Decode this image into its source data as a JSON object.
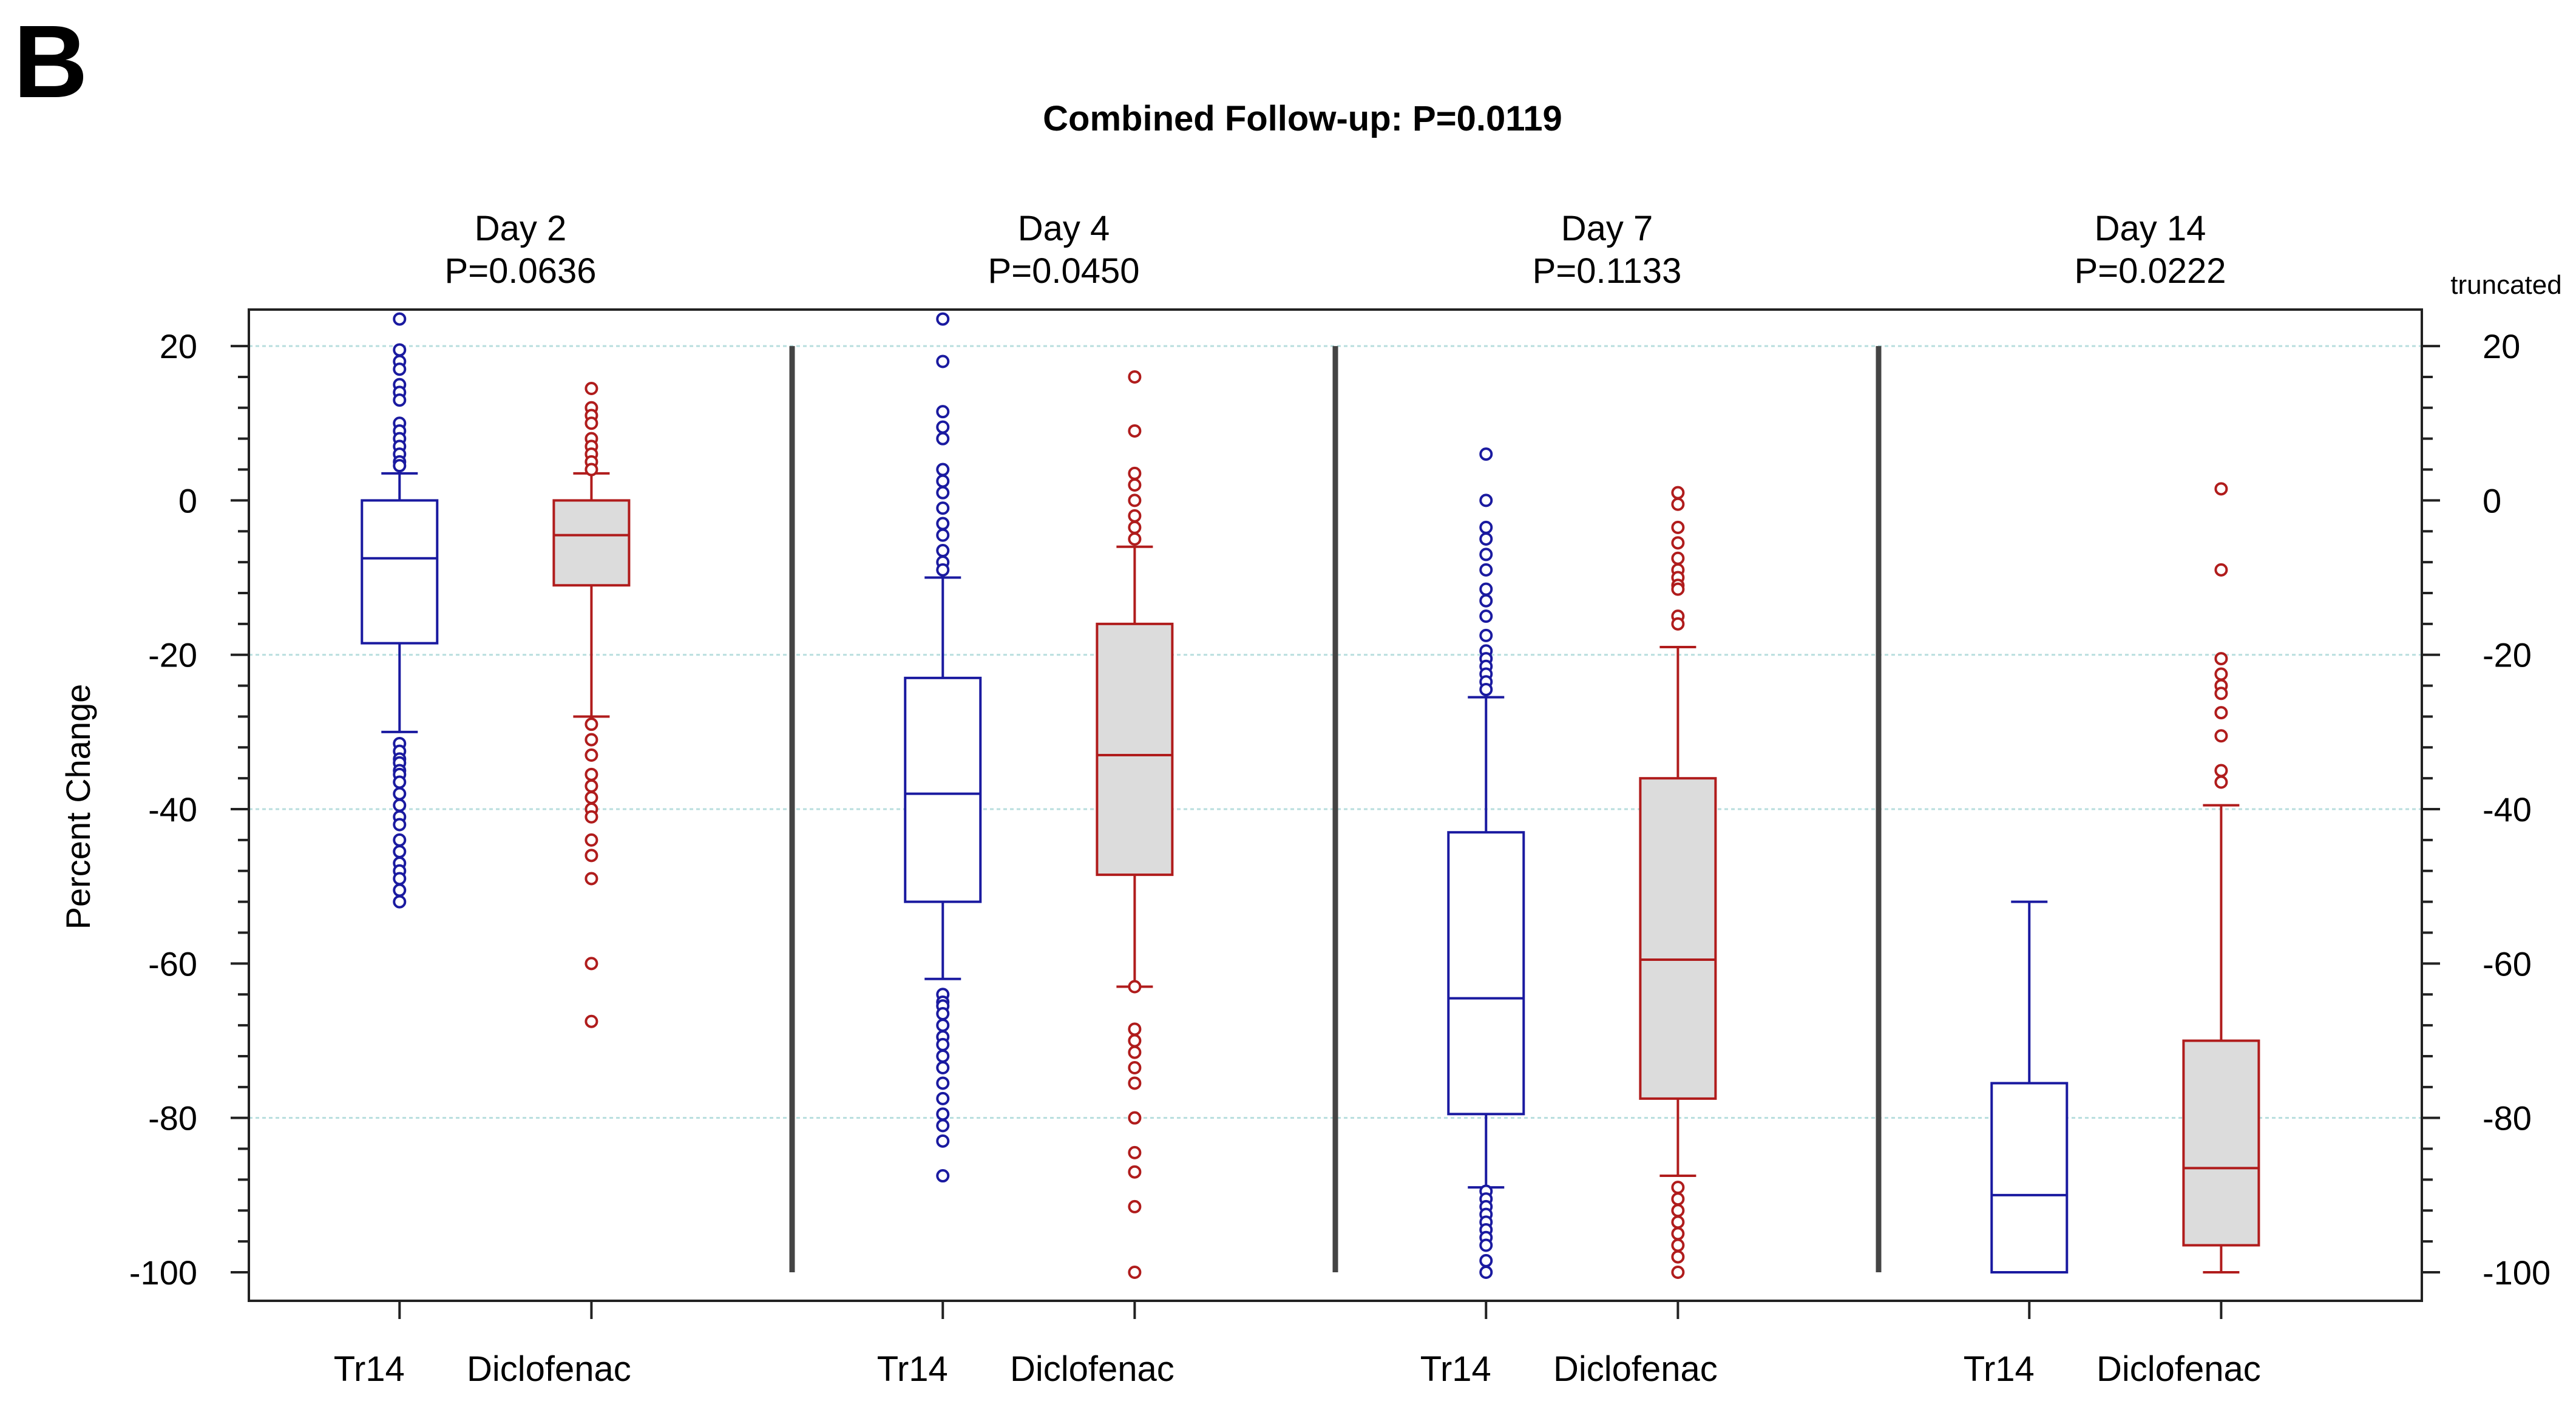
{
  "chart_data": {
    "type": "box",
    "panel_label": "B",
    "title": "Combined Follow-up: P=0.0119",
    "ylabel": "Percent Change",
    "right_note": "truncated",
    "ylim": [
      -100,
      24
    ],
    "yticks_major": [
      -100,
      -80,
      -60,
      -40,
      -20,
      0,
      20
    ],
    "ytick_labels": [
      "-100",
      "-80",
      "-60",
      "-40",
      "-20",
      "0",
      "20"
    ],
    "yticks_minor_step": 4,
    "gridlines": [
      -80,
      -40,
      -20,
      20
    ],
    "colors": {
      "Tr14": "#1a1aa0",
      "Diclofenac": "#b01c1c",
      "Diclofenac_fill": "#dcdcdc",
      "grid": "#b8dede"
    },
    "panels": [
      {
        "day": "Day 2",
        "p": "P=0.0636",
        "groups": [
          {
            "name": "Tr14",
            "whisker_low": -30,
            "q1": -18.5,
            "median": -7.5,
            "q3": 0,
            "whisker_high": 3.5,
            "outliers": [
              23.5,
              19.5,
              18,
              17,
              15,
              14,
              13,
              10,
              9,
              8,
              7,
              6,
              5,
              4.5,
              -31.5,
              -32.5,
              -33.5,
              -34,
              -35,
              -35.5,
              -36.5,
              -38,
              -39.5,
              -41,
              -42,
              -44,
              -45.5,
              -47,
              -48,
              -49,
              -50.5,
              -52
            ]
          },
          {
            "name": "Diclofenac",
            "whisker_low": -28,
            "q1": -11,
            "median": -4.5,
            "q3": 0,
            "whisker_high": 3.5,
            "outliers": [
              14.5,
              12,
              11,
              10,
              8,
              7,
              6,
              5,
              4,
              -29,
              -31,
              -33,
              -35.5,
              -37,
              -38.5,
              -40,
              -41,
              -44,
              -46,
              -49,
              -60,
              -67.5
            ]
          }
        ]
      },
      {
        "day": "Day 4",
        "p": "P=0.0450",
        "groups": [
          {
            "name": "Tr14",
            "whisker_low": -62,
            "q1": -52,
            "median": -38,
            "q3": -23,
            "whisker_high": -10,
            "outliers": [
              23.5,
              18,
              11.5,
              9.5,
              8,
              4,
              2.5,
              1,
              -1,
              -3,
              -4.5,
              -6.5,
              -8,
              -9,
              -64,
              -65,
              -65.5,
              -66.5,
              -68,
              -69.5,
              -70.5,
              -72,
              -73.5,
              -75.5,
              -77.5,
              -79.5,
              -81,
              -83,
              -87.5
            ]
          },
          {
            "name": "Diclofenac",
            "whisker_low": -63,
            "q1": -48.5,
            "median": -33,
            "q3": -16,
            "whisker_high": -6,
            "outliers": [
              16,
              9,
              3.5,
              2,
              0,
              -2,
              -3.5,
              -5,
              -63,
              -68.5,
              -70,
              -71.5,
              -73.5,
              -75.5,
              -80,
              -84.5,
              -87,
              -91.5,
              -100
            ]
          }
        ]
      },
      {
        "day": "Day 7",
        "p": "P=0.1133",
        "groups": [
          {
            "name": "Tr14",
            "whisker_low": -89,
            "q1": -79.5,
            "median": -64.5,
            "q3": -43,
            "whisker_high": -25.5,
            "outliers": [
              6,
              0,
              -3.5,
              -5,
              -7,
              -9,
              -11.5,
              -13,
              -15,
              -17.5,
              -19.5,
              -20.5,
              -21.5,
              -22.5,
              -23.5,
              -24.5,
              -89.5,
              -90.5,
              -91.5,
              -92.5,
              -93.5,
              -94.5,
              -95.5,
              -96.5,
              -98.5,
              -100
            ]
          },
          {
            "name": "Diclofenac",
            "whisker_low": -87.5,
            "q1": -77.5,
            "median": -59.5,
            "q3": -36,
            "whisker_high": -19,
            "outliers": [
              1,
              -0.5,
              -3.5,
              -5.5,
              -7.5,
              -9,
              -10,
              -11,
              -11.5,
              -15,
              -16,
              -89,
              -90.5,
              -92,
              -93.5,
              -95,
              -96.5,
              -98,
              -100
            ]
          }
        ]
      },
      {
        "day": "Day 14",
        "p": "P=0.0222",
        "groups": [
          {
            "name": "Tr14",
            "whisker_low": -100,
            "q1": -100,
            "median": -90,
            "q3": -75.5,
            "whisker_high": -52,
            "outliers": []
          },
          {
            "name": "Diclofenac",
            "whisker_low": -100,
            "q1": -96.5,
            "median": -86.5,
            "q3": -70,
            "whisker_high": -39.5,
            "outliers": [
              1.5,
              -9,
              -20.5,
              -22.5,
              -24,
              -25,
              -27.5,
              -30.5,
              -35,
              -36.5
            ]
          }
        ]
      }
    ]
  }
}
